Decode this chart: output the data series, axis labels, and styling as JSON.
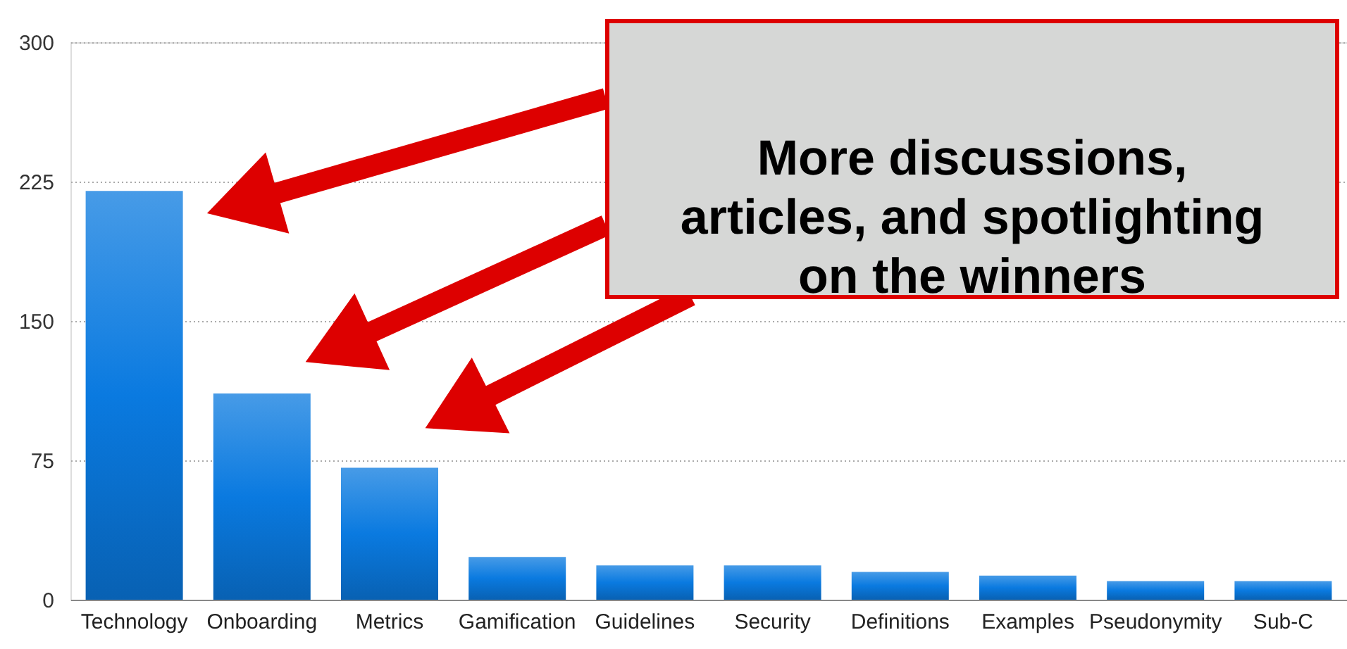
{
  "chart_data": {
    "type": "bar",
    "categories": [
      "Technology",
      "Onboarding",
      "Metrics",
      "Gamification",
      "Guidelines",
      "Security",
      "Definitions",
      "Examples",
      "Pseudonymity",
      "Sub-C"
    ],
    "values": [
      220,
      111,
      71,
      23,
      18.5,
      18.5,
      15,
      13,
      10,
      10
    ],
    "color": "#0a7ae0",
    "ylim": [
      0,
      300
    ],
    "yticks": [
      0,
      75,
      150,
      225,
      300
    ],
    "grid": "y",
    "annotations": [
      "More discussions,\narticles, and spotlighting\non the winners"
    ]
  }
}
